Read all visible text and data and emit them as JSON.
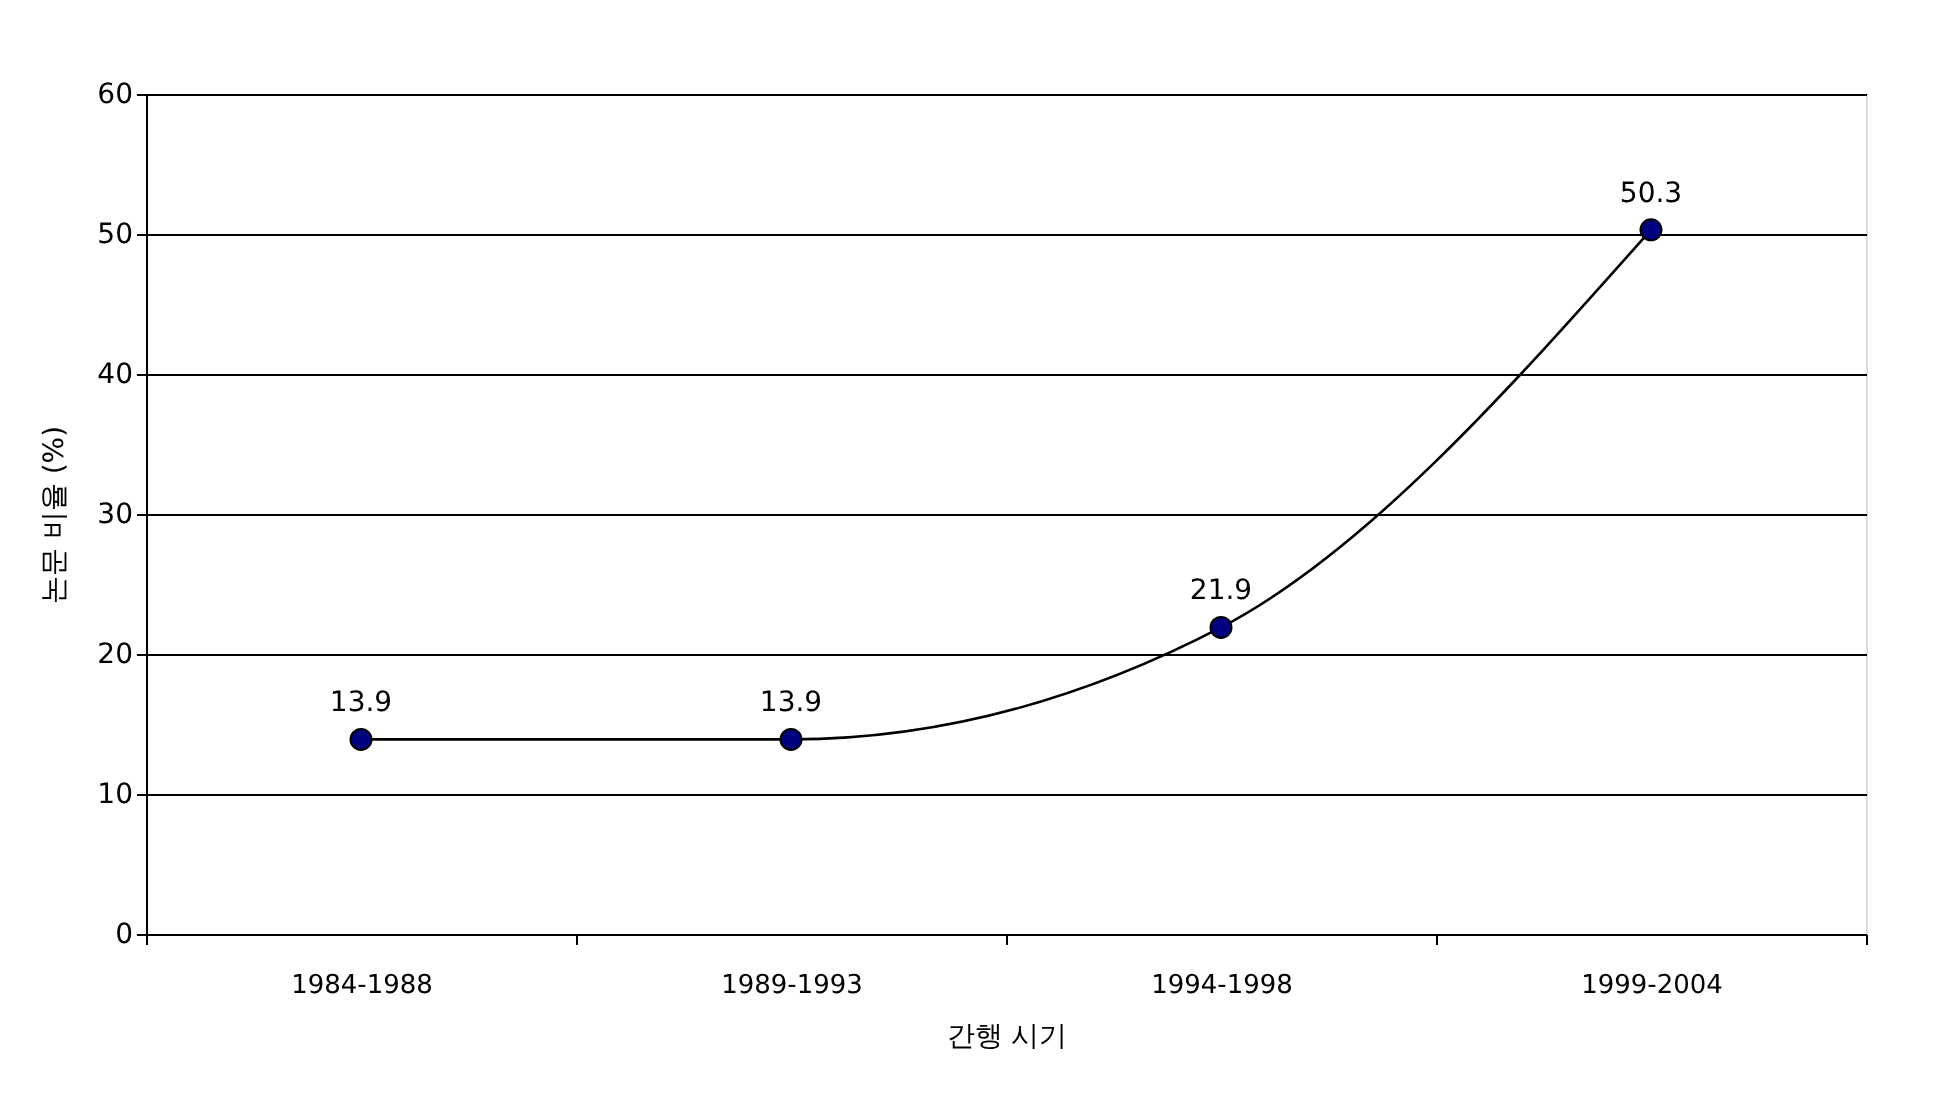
{
  "chart_data": {
    "type": "line",
    "xlabel": "간행 시기",
    "ylabel": "논문 비율 (%)",
    "categories": [
      "1984-1988",
      "1989-1993",
      "1994-1998",
      "1999-2004"
    ],
    "series": [
      {
        "color": "#000080",
        "values": [
          13.9,
          13.9,
          21.9,
          50.3
        ]
      }
    ],
    "ylim": [
      0,
      60
    ],
    "yticks": [
      0,
      10,
      20,
      30,
      40,
      50,
      60
    ],
    "grid": "y",
    "marker": "circle",
    "line_style": "solid",
    "data_labels": true,
    "legend": false
  }
}
